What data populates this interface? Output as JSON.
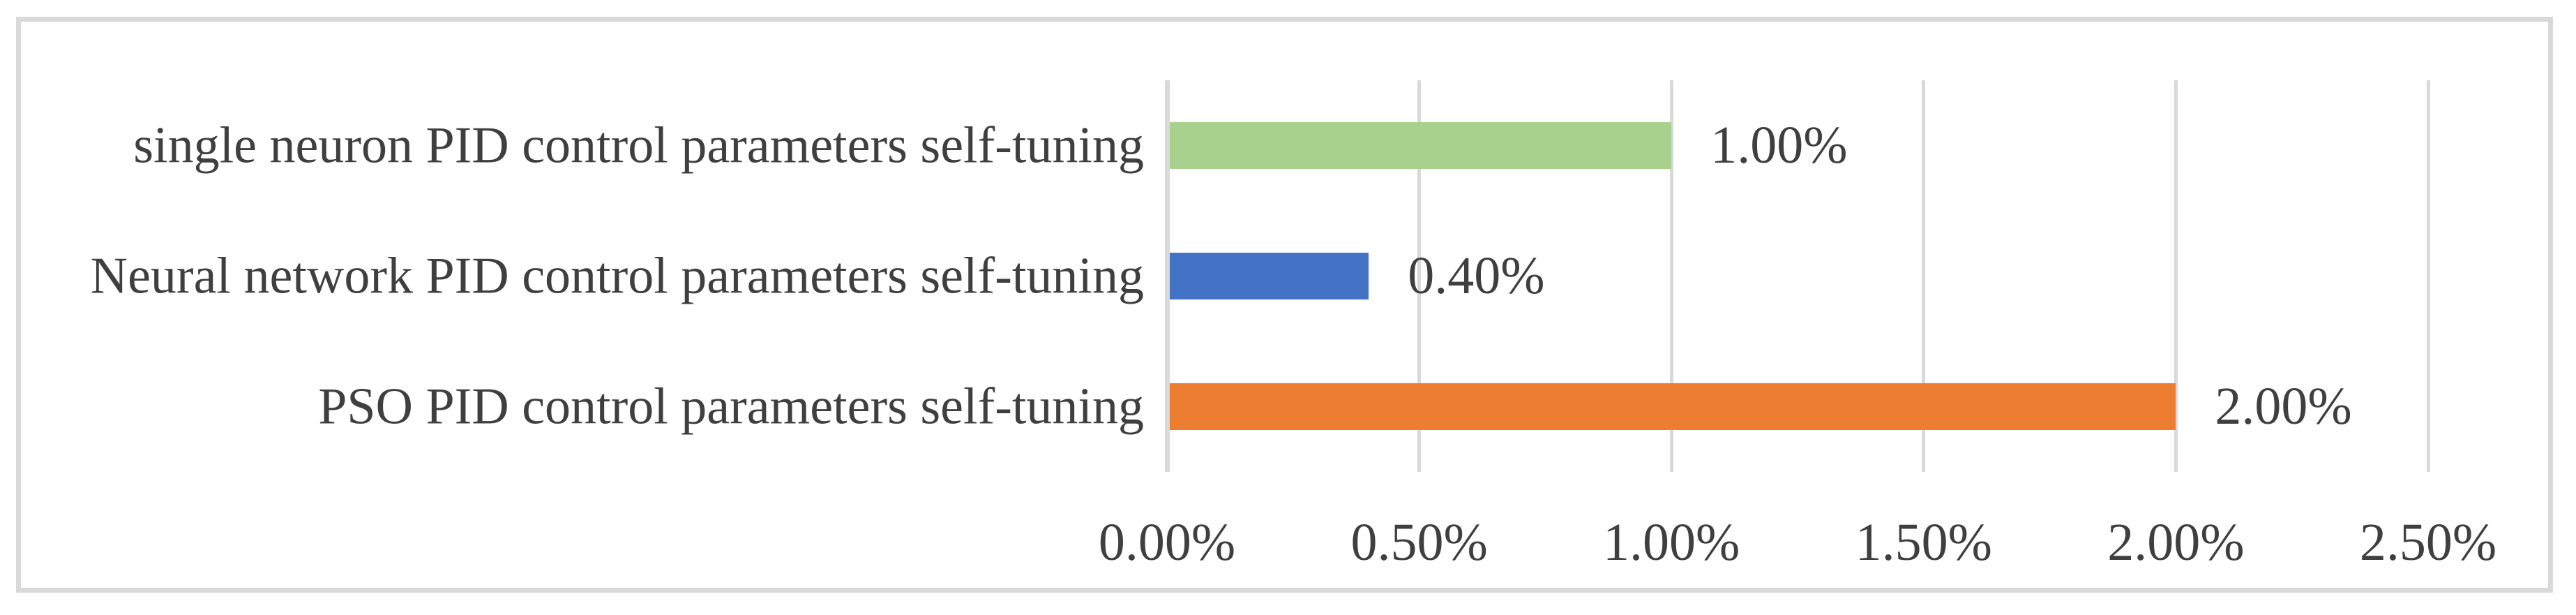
{
  "chart_data": {
    "type": "bar",
    "orientation": "horizontal",
    "title": "",
    "xlabel": "",
    "ylabel": "",
    "categories": [
      "single neuron PID control parameters self-tuning",
      "Neural network PID control parameters self-tuning",
      "PSO PID control parameters self-tuning"
    ],
    "values": [
      1.0,
      0.4,
      2.0
    ],
    "data_labels": [
      "1.00%",
      "0.40%",
      "2.00%"
    ],
    "bar_colors": [
      "#A9D18E",
      "#4472C4",
      "#ED7D31"
    ],
    "xlim": [
      0,
      2.5
    ],
    "x_ticks": [
      0,
      0.5,
      1.0,
      1.5,
      2.0,
      2.5
    ],
    "x_tick_labels": [
      "0.00%",
      "0.50%",
      "1.00%",
      "1.50%",
      "2.00%",
      "2.50%"
    ],
    "grid": "vertical-gridlines-on",
    "legend": "none",
    "colors": {
      "text": "#3F3F3F",
      "gridline": "#D9D9D9",
      "axis_line": "#D9D9D9",
      "frame_border": "#D9D9D9",
      "background": "#FFFFFF"
    }
  }
}
